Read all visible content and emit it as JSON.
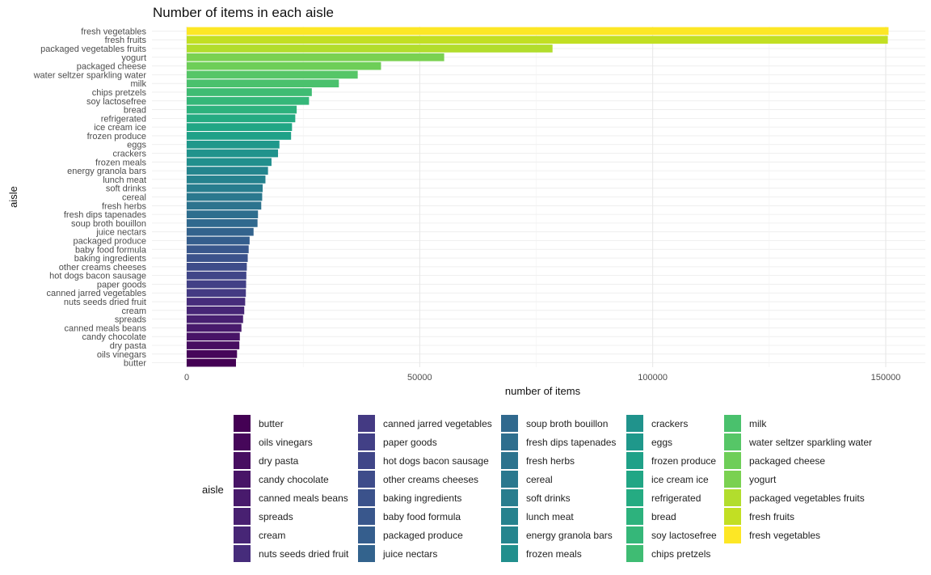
{
  "chart_data": {
    "type": "bar",
    "orientation": "horizontal",
    "title": "Number of items in each aisle",
    "xlabel": "number of items",
    "ylabel": "aisle",
    "xlim": [
      0,
      158000
    ],
    "x_ticks": [
      0,
      50000,
      100000,
      150000
    ],
    "x_tick_labels": [
      "0",
      "50000",
      "100000",
      "150000"
    ],
    "grid": true,
    "legend_title": "aisle",
    "legend_position": "bottom",
    "categories": [
      "butter",
      "oils vinegars",
      "dry pasta",
      "candy chocolate",
      "canned meals beans",
      "spreads",
      "cream",
      "nuts seeds dried fruit",
      "canned jarred vegetables",
      "paper goods",
      "hot dogs bacon sausage",
      "other creams cheeses",
      "baking ingredients",
      "baby food formula",
      "packaged produce",
      "juice nectars",
      "soup broth bouillon",
      "fresh dips tapenades",
      "fresh herbs",
      "cereal",
      "soft drinks",
      "lunch meat",
      "energy granola bars",
      "frozen meals",
      "crackers",
      "eggs",
      "frozen produce",
      "ice cream ice",
      "refrigerated",
      "bread",
      "soy lactosefree",
      "chips pretzels",
      "milk",
      "water seltzer sparkling water",
      "packaged cheese",
      "yogurt",
      "packaged vegetables fruits",
      "fresh fruits",
      "fresh vegetables"
    ],
    "values": [
      10575,
      10800,
      11300,
      11400,
      11750,
      12100,
      12350,
      12550,
      12700,
      12750,
      12800,
      12900,
      13100,
      13300,
      13500,
      14350,
      15200,
      15300,
      16000,
      16200,
      16300,
      16900,
      17450,
      18200,
      19600,
      19900,
      22400,
      22600,
      23300,
      23600,
      26250,
      26850,
      32650,
      36700,
      41700,
      55250,
      78500,
      150450,
      150600
    ],
    "colors": [
      "#440154",
      "#46075a",
      "#470e61",
      "#481467",
      "#481a6c",
      "#482071",
      "#472676",
      "#462c7b",
      "#443a83",
      "#424086",
      "#404688",
      "#3e4c8a",
      "#3b528b",
      "#39578c",
      "#355e8d",
      "#33638d",
      "#30698e",
      "#2e6e8e",
      "#2c738e",
      "#2a788e",
      "#287d8e",
      "#26828e",
      "#25858e",
      "#218f8d",
      "#20938c",
      "#1f988b",
      "#1fa188",
      "#21a685",
      "#25ab82",
      "#2db27d",
      "#35b779",
      "#3fbc73",
      "#4ac16d",
      "#56c667",
      "#6ece58",
      "#7ad151",
      "#b2dd2d",
      "#c2df23",
      "#fde725"
    ]
  }
}
